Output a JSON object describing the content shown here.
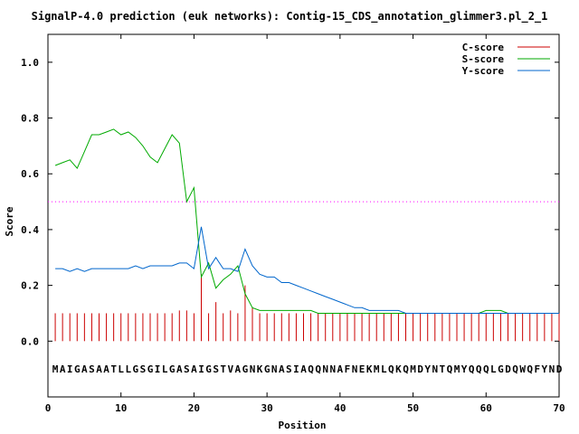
{
  "chart_data": {
    "type": "line",
    "title": "SignalP-4.0 prediction (euk networks): Contig-15_CDS_annotation_glimmer3.pl_2_1",
    "xlabel": "Position",
    "ylabel": "Score",
    "xlim": [
      0,
      70
    ],
    "ylim": [
      -0.2,
      1.1
    ],
    "x_ticks": [
      0,
      10,
      20,
      30,
      40,
      50,
      60,
      70
    ],
    "y_ticks": [
      0.0,
      0.2,
      0.4,
      0.6,
      0.8,
      1.0
    ],
    "x_tick_labels": [
      "0",
      "10",
      "20",
      "30",
      "40",
      "50",
      "60",
      "70"
    ],
    "y_tick_labels": [
      "0.0",
      "0.2",
      "0.4",
      "0.6",
      "0.8",
      "1.0"
    ],
    "threshold": 0.5,
    "legend_position": "top-right",
    "sequence": "MAIGASAATLLGSGILGASAIGSTVAGNKGNASIAQQNNAFNEKMLQKQMDYNTQMYQQQLGDQWQFYND",
    "series": [
      {
        "name": "C-score",
        "style": "impulse",
        "color": "#cc0000",
        "values": [
          0.1,
          0.1,
          0.1,
          0.1,
          0.1,
          0.1,
          0.1,
          0.1,
          0.1,
          0.1,
          0.1,
          0.1,
          0.1,
          0.1,
          0.1,
          0.1,
          0.1,
          0.11,
          0.11,
          0.1,
          0.24,
          0.1,
          0.14,
          0.1,
          0.11,
          0.1,
          0.2,
          0.12,
          0.1,
          0.1,
          0.1,
          0.1,
          0.1,
          0.1,
          0.1,
          0.1,
          0.1,
          0.1,
          0.1,
          0.1,
          0.1,
          0.1,
          0.1,
          0.1,
          0.1,
          0.1,
          0.1,
          0.1,
          0.1,
          0.1,
          0.1,
          0.1,
          0.1,
          0.1,
          0.1,
          0.1,
          0.1,
          0.1,
          0.1,
          0.1,
          0.1,
          0.1,
          0.1,
          0.1,
          0.1,
          0.1,
          0.1,
          0.1,
          0.1,
          0.1
        ]
      },
      {
        "name": "S-score",
        "style": "line",
        "color": "#00aa00",
        "values": [
          0.63,
          0.64,
          0.65,
          0.62,
          0.68,
          0.74,
          0.74,
          0.75,
          0.76,
          0.74,
          0.75,
          0.73,
          0.7,
          0.66,
          0.64,
          0.69,
          0.74,
          0.71,
          0.5,
          0.55,
          0.23,
          0.28,
          0.19,
          0.22,
          0.24,
          0.27,
          0.17,
          0.12,
          0.11,
          0.11,
          0.11,
          0.11,
          0.11,
          0.11,
          0.11,
          0.11,
          0.1,
          0.1,
          0.1,
          0.1,
          0.1,
          0.1,
          0.1,
          0.1,
          0.1,
          0.1,
          0.1,
          0.1,
          0.1,
          0.1,
          0.1,
          0.1,
          0.1,
          0.1,
          0.1,
          0.1,
          0.1,
          0.1,
          0.1,
          0.11,
          0.11,
          0.11,
          0.1,
          0.1,
          0.1,
          0.1,
          0.1,
          0.1,
          0.1,
          0.1
        ]
      },
      {
        "name": "Y-score",
        "style": "line",
        "color": "#0066cc",
        "values": [
          0.26,
          0.26,
          0.25,
          0.26,
          0.25,
          0.26,
          0.26,
          0.26,
          0.26,
          0.26,
          0.26,
          0.27,
          0.26,
          0.27,
          0.27,
          0.27,
          0.27,
          0.28,
          0.28,
          0.26,
          0.41,
          0.26,
          0.3,
          0.26,
          0.26,
          0.25,
          0.33,
          0.27,
          0.24,
          0.23,
          0.23,
          0.21,
          0.21,
          0.2,
          0.19,
          0.18,
          0.17,
          0.16,
          0.15,
          0.14,
          0.13,
          0.12,
          0.12,
          0.11,
          0.11,
          0.11,
          0.11,
          0.11,
          0.1,
          0.1,
          0.1,
          0.1,
          0.1,
          0.1,
          0.1,
          0.1,
          0.1,
          0.1,
          0.1,
          0.1,
          0.1,
          0.1,
          0.1,
          0.1,
          0.1,
          0.1,
          0.1,
          0.1,
          0.1,
          0.1
        ]
      }
    ]
  }
}
